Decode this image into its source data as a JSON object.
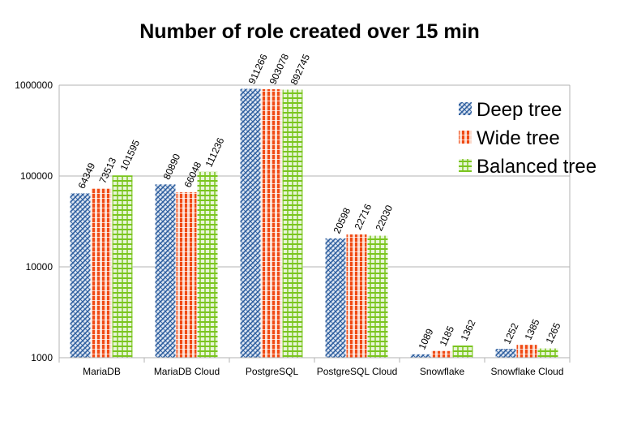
{
  "chart_data": {
    "type": "bar",
    "title": "Number of role created over 15 min",
    "xlabel": "",
    "ylabel": "",
    "yscale": "log",
    "ylim": [
      1000,
      1000000
    ],
    "yticks": [
      1000,
      10000,
      100000,
      1000000
    ],
    "categories": [
      "MariaDB",
      "MariaDB Cloud",
      "PostgreSQL",
      "PostgreSQL Cloud",
      "Snowflake",
      "Snowflake Cloud"
    ],
    "series": [
      {
        "name": "Deep tree",
        "color": "#2f5f9f",
        "values": [
          64349,
          80890,
          911266,
          20598,
          1089,
          1252
        ]
      },
      {
        "name": "Wide tree",
        "color": "#f04a14",
        "values": [
          73513,
          66048,
          903078,
          22716,
          1185,
          1385
        ]
      },
      {
        "name": "Balanced tree",
        "color": "#7ac51f",
        "values": [
          101595,
          111236,
          892745,
          22030,
          1362,
          1265
        ]
      }
    ],
    "legend_position": "top-right",
    "grid": true
  }
}
